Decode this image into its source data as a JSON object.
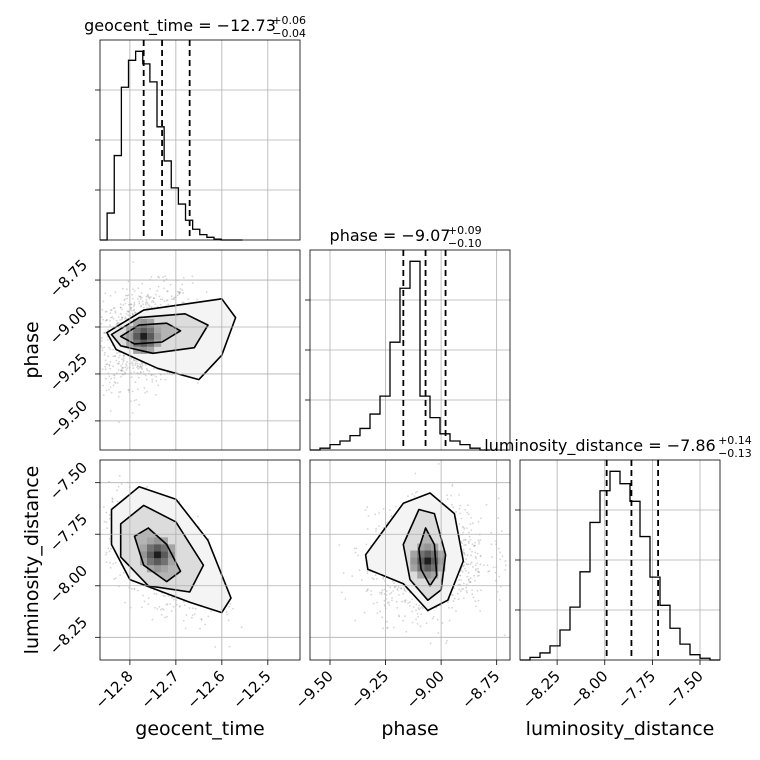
{
  "chart_data": {
    "type": "corner",
    "parameters": [
      "geocent_time",
      "phase",
      "luminosity_distance"
    ],
    "titles": [
      {
        "param": "geocent_time",
        "text": "geocent_time = −12.73",
        "plus": "+0.06",
        "minus": "−0.04"
      },
      {
        "param": "phase",
        "text": "phase = −9.07",
        "plus": "+0.09",
        "minus": "−0.10"
      },
      {
        "param": "luminosity_distance",
        "text": "luminosity_distance = −7.86",
        "plus": "+0.14",
        "minus": "−0.13"
      }
    ],
    "axis_labels": {
      "x": [
        "geocent_time",
        "phase",
        "luminosity_distance"
      ],
      "y": [
        "phase",
        "luminosity_distance"
      ]
    },
    "ranges": {
      "geocent_time": [
        -12.865,
        -12.43
      ],
      "phase": [
        -9.59,
        -8.69
      ],
      "luminosity_distance": [
        -8.445,
        -7.395
      ],
      "phase_y": [
        -9.655,
        -8.59
      ],
      "luminosity_distance_y": [
        -8.36,
        -7.39
      ]
    },
    "ticks": {
      "geocent_time": [
        {
          "v": -12.8,
          "label": "−12.8"
        },
        {
          "v": -12.7,
          "label": "−12.7"
        },
        {
          "v": -12.6,
          "label": "−12.6"
        },
        {
          "v": -12.5,
          "label": "−12.5"
        }
      ],
      "phase": [
        {
          "v": -9.5,
          "label": "−9.50"
        },
        {
          "v": -9.25,
          "label": "−9.25"
        },
        {
          "v": -9.0,
          "label": "−9.00"
        },
        {
          "v": -8.75,
          "label": "−8.75"
        }
      ],
      "luminosity_distance": [
        {
          "v": -8.25,
          "label": "−8.25"
        },
        {
          "v": -8.0,
          "label": "−8.00"
        },
        {
          "v": -7.75,
          "label": "−7.75"
        },
        {
          "v": -7.5,
          "label": "−7.50"
        }
      ],
      "phase_y": [
        {
          "v": -8.75,
          "label": "−8.75"
        },
        {
          "v": -9.0,
          "label": "−9.00"
        },
        {
          "v": -9.25,
          "label": "−9.25"
        },
        {
          "v": -9.5,
          "label": "−9.50"
        }
      ],
      "luminosity_distance_y": [
        {
          "v": -7.5,
          "label": "−7.50"
        },
        {
          "v": -7.75,
          "label": "−7.75"
        },
        {
          "v": -8.0,
          "label": "−8.00"
        },
        {
          "v": -8.25,
          "label": "−8.25"
        }
      ]
    },
    "histograms": {
      "geocent_time": {
        "bin_start": -12.865,
        "bin_width": 0.0155,
        "counts": [
          0,
          0.15,
          0.47,
          0.85,
          1.0,
          1.05,
          0.98,
          0.88,
          0.63,
          0.44,
          0.29,
          0.2,
          0.11,
          0.06,
          0.03,
          0.015,
          0.005,
          0,
          0,
          0
        ]
      },
      "phase": {
        "bin_start": -9.59,
        "bin_width": 0.045,
        "counts": [
          0,
          0.01,
          0.03,
          0.05,
          0.08,
          0.12,
          0.2,
          0.3,
          0.6,
          0.9,
          1.05,
          0.3,
          0.18,
          0.09,
          0.05,
          0.03,
          0.01,
          0
        ]
      },
      "luminosity_distance": {
        "bin_start": -8.445,
        "bin_width": 0.0525,
        "counts": [
          0,
          0.015,
          0.04,
          0.08,
          0.17,
          0.3,
          0.5,
          0.78,
          0.96,
          1.07,
          1.0,
          0.9,
          0.7,
          0.47,
          0.31,
          0.18,
          0.09,
          0.03,
          0.01,
          0
        ]
      }
    },
    "quantiles": {
      "geocent_time": [
        -12.77,
        -12.73,
        -12.67
      ],
      "phase": [
        -9.17,
        -9.07,
        -8.98
      ],
      "luminosity_distance": [
        -7.99,
        -7.86,
        -7.72
      ]
    },
    "scatter_2d": {
      "phase_vs_geocent_time": {
        "x_range": [
          -12.84,
          -12.5
        ],
        "y_range": [
          -9.56,
          -8.72
        ],
        "density_peak": {
          "x": -12.77,
          "y": -9.05
        },
        "contours": [
          [
            [
              -12.82,
              -9.05
            ],
            [
              -12.78,
              -8.99
            ],
            [
              -12.72,
              -8.98
            ],
            [
              -12.69,
              -9.02
            ],
            [
              -12.73,
              -9.08
            ],
            [
              -12.79,
              -9.09
            ]
          ],
          [
            [
              -12.84,
              -9.04
            ],
            [
              -12.78,
              -8.95
            ],
            [
              -12.68,
              -8.93
            ],
            [
              -12.63,
              -8.99
            ],
            [
              -12.66,
              -9.11
            ],
            [
              -12.75,
              -9.14
            ],
            [
              -12.82,
              -9.1
            ]
          ],
          [
            [
              -12.85,
              -9.03
            ],
            [
              -12.77,
              -8.91
            ],
            [
              -12.6,
              -8.85
            ],
            [
              -12.57,
              -8.95
            ],
            [
              -12.6,
              -9.15
            ],
            [
              -12.65,
              -9.28
            ],
            [
              -12.74,
              -9.22
            ],
            [
              -12.83,
              -9.12
            ]
          ]
        ]
      },
      "luminosity_distance_vs_geocent_time": {
        "x_range": [
          -12.84,
          -12.48
        ],
        "y_range": [
          -8.3,
          -7.44
        ],
        "density_peak": {
          "x": -12.74,
          "y": -7.85
        },
        "contours": [
          [
            [
              -12.79,
              -7.76
            ],
            [
              -12.76,
              -7.72
            ],
            [
              -12.72,
              -7.8
            ],
            [
              -12.69,
              -7.93
            ],
            [
              -12.72,
              -7.98
            ],
            [
              -12.77,
              -7.9
            ]
          ],
          [
            [
              -12.82,
              -7.7
            ],
            [
              -12.77,
              -7.61
            ],
            [
              -12.7,
              -7.69
            ],
            [
              -12.64,
              -7.9
            ],
            [
              -12.67,
              -8.03
            ],
            [
              -12.76,
              -8.0
            ],
            [
              -12.82,
              -7.86
            ]
          ],
          [
            [
              -12.84,
              -7.63
            ],
            [
              -12.78,
              -7.52
            ],
            [
              -12.7,
              -7.58
            ],
            [
              -12.63,
              -7.78
            ],
            [
              -12.58,
              -8.06
            ],
            [
              -12.6,
              -8.13
            ],
            [
              -12.67,
              -8.08
            ],
            [
              -12.8,
              -7.97
            ],
            [
              -12.84,
              -7.8
            ]
          ]
        ]
      },
      "luminosity_distance_vs_phase": {
        "x_range": [
          -9.6,
          -8.72
        ],
        "y_range": [
          -8.33,
          -7.48
        ],
        "density_peak": {
          "x": -9.06,
          "y": -7.88
        },
        "contours": [
          [
            [
              -9.1,
              -7.82
            ],
            [
              -9.07,
              -7.72
            ],
            [
              -9.03,
              -7.8
            ],
            [
              -9.02,
              -7.95
            ],
            [
              -9.05,
              -8.0
            ],
            [
              -9.09,
              -7.92
            ]
          ],
          [
            [
              -9.17,
              -7.8
            ],
            [
              -9.1,
              -7.63
            ],
            [
              -9.03,
              -7.65
            ],
            [
              -8.98,
              -7.85
            ],
            [
              -9.0,
              -8.02
            ],
            [
              -9.06,
              -8.07
            ],
            [
              -9.14,
              -7.97
            ]
          ],
          [
            [
              -9.34,
              -7.85
            ],
            [
              -9.17,
              -7.6
            ],
            [
              -9.05,
              -7.55
            ],
            [
              -8.94,
              -7.65
            ],
            [
              -8.9,
              -7.88
            ],
            [
              -8.97,
              -8.07
            ],
            [
              -9.06,
              -8.12
            ],
            [
              -9.17,
              -7.99
            ],
            [
              -9.33,
              -7.92
            ]
          ]
        ]
      }
    },
    "grid": true
  }
}
